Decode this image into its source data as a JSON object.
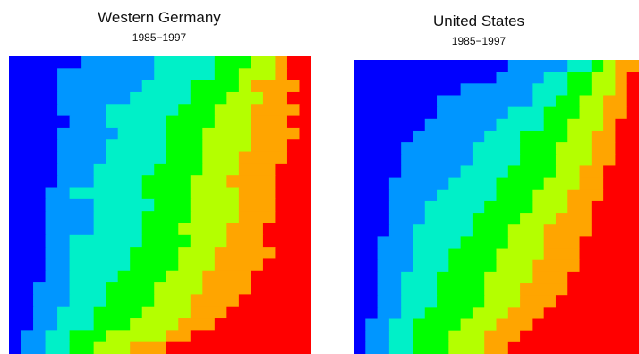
{
  "colors": {
    "palette": [
      "#0000ff",
      "#0096ff",
      "#00f0c8",
      "#00ff00",
      "#b4ff00",
      "#ffa500",
      "#ff0000"
    ],
    "background": "#ffffff"
  },
  "chart_data": [
    {
      "type": "heatmap",
      "title": "Western Germany",
      "subtitle": "1985−1997",
      "rows": 25,
      "cols": 25,
      "color_levels": 7,
      "boundaries": [
        [
          6,
          12,
          17,
          20,
          22,
          23
        ],
        [
          4,
          12,
          17,
          19,
          22,
          23
        ],
        [
          4,
          11,
          15,
          19,
          20,
          24
        ],
        [
          4,
          10,
          15,
          18,
          21,
          23
        ],
        [
          4,
          8,
          14,
          17,
          20,
          24
        ],
        [
          5,
          8,
          13,
          17,
          20,
          23
        ],
        [
          4,
          9,
          13,
          16,
          20,
          24
        ],
        [
          4,
          8,
          13,
          16,
          20,
          23
        ],
        [
          4,
          8,
          13,
          16,
          19,
          23
        ],
        [
          4,
          7,
          12,
          16,
          19,
          22
        ],
        [
          4,
          7,
          11,
          15,
          18,
          22
        ],
        [
          3,
          5,
          11,
          15,
          19,
          22
        ],
        [
          3,
          7,
          12,
          15,
          19,
          22
        ],
        [
          3,
          7,
          11,
          15,
          19,
          22
        ],
        [
          3,
          7,
          11,
          14,
          18,
          21
        ],
        [
          3,
          5,
          11,
          15,
          18,
          21
        ],
        [
          3,
          5,
          10,
          14,
          17,
          22
        ],
        [
          3,
          5,
          10,
          14,
          17,
          21
        ],
        [
          3,
          5,
          9,
          13,
          16,
          20
        ],
        [
          2,
          5,
          8,
          12,
          16,
          20
        ],
        [
          2,
          5,
          8,
          12,
          15,
          19
        ],
        [
          2,
          4,
          7,
          11,
          15,
          18
        ],
        [
          2,
          4,
          7,
          10,
          14,
          17
        ],
        [
          1,
          3,
          5,
          8,
          13,
          15
        ],
        [
          1,
          3,
          5,
          7,
          10,
          13
        ]
      ]
    },
    {
      "type": "heatmap",
      "title": "United States",
      "subtitle": "1985−1997",
      "rows": 25,
      "cols": 24,
      "color_levels": 7,
      "boundaries": [
        [
          13,
          18,
          20,
          21,
          22,
          24
        ],
        [
          12,
          16,
          18,
          20,
          22,
          23
        ],
        [
          9,
          15,
          18,
          20,
          22,
          23
        ],
        [
          7,
          15,
          17,
          19,
          21,
          23
        ],
        [
          7,
          13,
          16,
          19,
          21,
          23
        ],
        [
          6,
          12,
          16,
          18,
          21,
          22
        ],
        [
          5,
          11,
          14,
          18,
          20,
          22
        ],
        [
          4,
          10,
          14,
          17,
          20,
          22
        ],
        [
          4,
          10,
          14,
          17,
          20,
          22
        ],
        [
          4,
          9,
          13,
          17,
          19,
          21
        ],
        [
          3,
          8,
          12,
          16,
          19,
          21
        ],
        [
          3,
          7,
          12,
          15,
          18,
          21
        ],
        [
          3,
          6,
          11,
          15,
          18,
          20
        ],
        [
          3,
          6,
          10,
          14,
          17,
          20
        ],
        [
          3,
          5,
          10,
          13,
          16,
          20
        ],
        [
          2,
          5,
          9,
          13,
          16,
          19
        ],
        [
          2,
          5,
          8,
          12,
          16,
          19
        ],
        [
          2,
          5,
          8,
          12,
          15,
          19
        ],
        [
          2,
          4,
          7,
          11,
          15,
          18
        ],
        [
          2,
          4,
          7,
          11,
          14,
          18
        ],
        [
          2,
          4,
          7,
          11,
          14,
          17
        ],
        [
          2,
          4,
          6,
          10,
          13,
          16
        ],
        [
          1,
          3,
          5,
          9,
          12,
          15
        ],
        [
          1,
          3,
          5,
          8,
          11,
          14
        ],
        [
          1,
          3,
          5,
          8,
          11,
          13
        ]
      ]
    }
  ]
}
